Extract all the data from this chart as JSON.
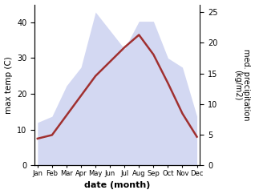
{
  "months": [
    "Jan",
    "Feb",
    "Mar",
    "Apr",
    "May",
    "Jun",
    "Jul",
    "Aug",
    "Sep",
    "Oct",
    "Nov",
    "Dec"
  ],
  "month_indices": [
    1,
    2,
    3,
    4,
    5,
    6,
    7,
    8,
    9,
    10,
    11,
    12
  ],
  "max_temp": [
    7.5,
    8.5,
    14.0,
    19.5,
    25.0,
    29.0,
    33.0,
    36.5,
    31.0,
    23.0,
    14.5,
    8.0
  ],
  "precipitation": [
    7.0,
    8.0,
    13.0,
    16.0,
    25.0,
    22.0,
    19.0,
    23.5,
    23.5,
    17.5,
    16.0,
    8.0
  ],
  "temp_color": "#a03030",
  "precip_color": "#b0b8e8",
  "precip_fill_alpha": 0.55,
  "temp_ylim": [
    0,
    45
  ],
  "precip_ylim": [
    0,
    26.25
  ],
  "temp_yticks": [
    0,
    10,
    20,
    30,
    40
  ],
  "precip_yticks": [
    0,
    5,
    10,
    15,
    20,
    25
  ],
  "xlabel": "date (month)",
  "ylabel_left": "max temp (C)",
  "ylabel_right": "med. precipitation\n(kg/m2)",
  "background_color": "#ffffff",
  "line_width": 1.8,
  "figsize": [
    3.18,
    2.42
  ],
  "dpi": 100
}
